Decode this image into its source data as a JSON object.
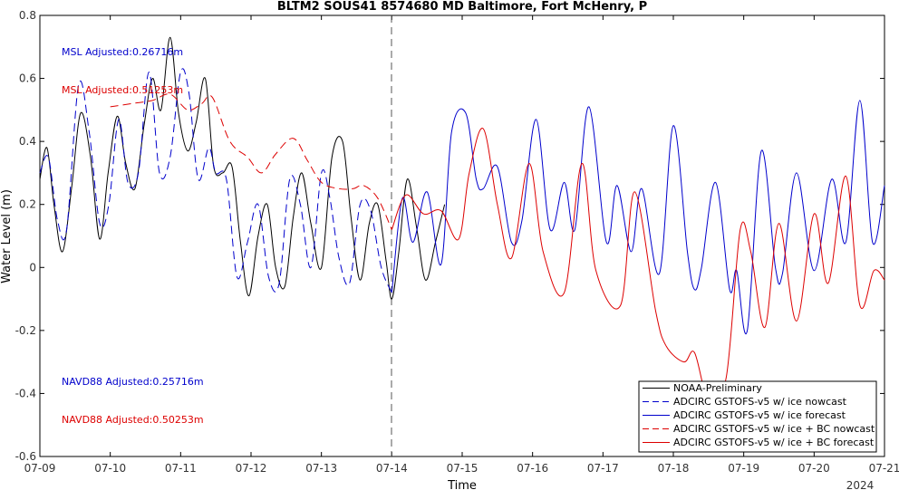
{
  "chart_data": {
    "type": "line",
    "title": "BLTM2 SOUS41 8574680 MD Baltimore, Fort McHenry, P",
    "xlabel": "Time",
    "ylabel": "Water Level (m)",
    "xlim": [
      "07-09",
      "07-21"
    ],
    "ylim": [
      -0.6,
      0.8
    ],
    "year_label": "2024",
    "x_ticks": [
      "07-09",
      "07-10",
      "07-11",
      "07-12",
      "07-13",
      "07-14",
      "07-15",
      "07-16",
      "07-17",
      "07-18",
      "07-19",
      "07-20",
      "07-21"
    ],
    "y_ticks": [
      "-0.6",
      "-0.4",
      "-0.2",
      "0",
      "0.2",
      "0.4",
      "0.6",
      "0.8"
    ],
    "nowcast_end": "07-14",
    "annotations": [
      {
        "text": "MSL Adjusted:0.26716m",
        "color": "#0000cc"
      },
      {
        "text": "MSL Adjusted:0.51253m",
        "color": "#dd0000"
      },
      {
        "text": "NAVD88 Adjusted:0.25716m",
        "color": "#0000cc"
      },
      {
        "text": "NAVD88 Adjusted:0.50253m",
        "color": "#dd0000"
      }
    ],
    "legend_position": "bottom-right",
    "series": [
      {
        "name": "NOAA-Preliminary",
        "color": "#000000",
        "dash": "solid",
        "x": [
          0,
          0.1,
          0.2,
          0.32,
          0.45,
          0.58,
          0.72,
          0.85,
          0.97,
          1.1,
          1.22,
          1.35,
          1.48,
          1.6,
          1.72,
          1.85,
          1.97,
          2.1,
          2.22,
          2.35,
          2.47,
          2.6,
          2.73,
          2.85,
          2.97,
          3.1,
          3.23,
          3.35,
          3.48,
          3.6,
          3.72,
          3.85,
          4.0,
          4.15,
          4.3,
          4.42,
          4.55,
          4.68,
          4.8,
          4.92,
          5.0,
          5.1,
          5.22,
          5.35,
          5.48,
          5.62,
          5.75
        ],
        "y": [
          0.28,
          0.38,
          0.2,
          0.05,
          0.25,
          0.49,
          0.35,
          0.09,
          0.3,
          0.48,
          0.33,
          0.25,
          0.45,
          0.6,
          0.5,
          0.73,
          0.49,
          0.37,
          0.46,
          0.6,
          0.32,
          0.3,
          0.32,
          0.08,
          -0.09,
          0.1,
          0.2,
          0.0,
          -0.06,
          0.16,
          0.3,
          0.14,
          0.0,
          0.35,
          0.4,
          0.16,
          -0.04,
          0.14,
          0.2,
          0.02,
          -0.1,
          0.05,
          0.28,
          0.13,
          -0.04,
          0.08,
          0.2
        ]
      },
      {
        "name": "ADCIRC GSTOFS-v5 w/ ice nowcast",
        "color": "#0000cc",
        "dash": "dashed",
        "x": [
          0,
          0.12,
          0.25,
          0.38,
          0.55,
          0.7,
          0.85,
          0.98,
          1.12,
          1.25,
          1.4,
          1.55,
          1.7,
          1.85,
          2.0,
          2.12,
          2.25,
          2.4,
          2.5,
          2.65,
          2.8,
          2.95,
          3.1,
          3.25,
          3.4,
          3.55,
          3.7,
          3.85,
          4.0,
          4.12,
          4.25,
          4.4,
          4.55,
          4.7,
          4.85,
          5.0
        ],
        "y": [
          0.3,
          0.35,
          0.15,
          0.12,
          0.58,
          0.43,
          0.14,
          0.2,
          0.47,
          0.27,
          0.3,
          0.62,
          0.3,
          0.35,
          0.62,
          0.55,
          0.28,
          0.38,
          0.3,
          0.28,
          -0.03,
          0.08,
          0.2,
          -0.03,
          -0.05,
          0.28,
          0.2,
          0.0,
          0.3,
          0.22,
          0.03,
          -0.05,
          0.2,
          0.18,
          0.0,
          -0.08
        ]
      },
      {
        "name": "ADCIRC GSTOFS-v5 w/ ice forecast",
        "color": "#0000cc",
        "dash": "solid",
        "x": [
          5.0,
          5.15,
          5.3,
          5.5,
          5.7,
          5.85,
          6.05,
          6.2,
          6.3,
          6.5,
          6.7,
          6.85,
          7.05,
          7.25,
          7.45,
          7.6,
          7.8,
          8.05,
          8.2,
          8.4,
          8.55,
          8.8,
          9.0,
          9.2,
          9.3,
          9.4,
          9.6,
          9.8,
          9.9,
          10.05,
          10.25,
          10.45,
          10.55,
          10.75,
          11.0,
          11.25,
          11.45,
          11.65,
          11.83,
          12.0
        ],
        "y": [
          -0.08,
          0.22,
          0.08,
          0.24,
          0.01,
          0.43,
          0.49,
          0.28,
          0.25,
          0.32,
          0.08,
          0.15,
          0.47,
          0.12,
          0.27,
          0.12,
          0.51,
          0.08,
          0.26,
          0.05,
          0.25,
          -0.02,
          0.45,
          0.05,
          -0.07,
          0.0,
          0.27,
          -0.07,
          -0.01,
          -0.2,
          0.37,
          0.0,
          -0.02,
          0.3,
          -0.01,
          0.28,
          0.08,
          0.53,
          0.08,
          0.26
        ]
      },
      {
        "name": "ADCIRC GSTOFS-v5 w/ ice + BC nowcast",
        "color": "#dd0000",
        "dash": "dashed",
        "x": [
          1.0,
          1.3,
          1.6,
          1.85,
          2.1,
          2.3,
          2.45,
          2.7,
          2.95,
          3.15,
          3.35,
          3.6,
          3.8,
          4.0,
          4.25,
          4.45,
          4.6,
          4.8,
          5.0
        ],
        "y": [
          0.51,
          0.52,
          0.53,
          0.55,
          0.5,
          0.52,
          0.54,
          0.4,
          0.35,
          0.3,
          0.36,
          0.41,
          0.34,
          0.27,
          0.25,
          0.25,
          0.26,
          0.22,
          0.12
        ]
      },
      {
        "name": "ADCIRC GSTOFS-v5 w/ ice + BC forecast",
        "color": "#dd0000",
        "dash": "solid",
        "x": [
          5.0,
          5.2,
          5.45,
          5.7,
          5.95,
          6.1,
          6.3,
          6.5,
          6.7,
          6.95,
          7.15,
          7.45,
          7.7,
          7.9,
          8.25,
          8.45,
          8.75,
          8.9,
          9.15,
          9.3,
          9.5,
          9.75,
          9.95,
          10.1,
          10.3,
          10.5,
          10.75,
          11.0,
          11.2,
          11.45,
          11.65,
          11.85,
          12.0
        ],
        "y": [
          0.12,
          0.23,
          0.17,
          0.18,
          0.09,
          0.3,
          0.44,
          0.2,
          0.03,
          0.33,
          0.05,
          -0.08,
          0.33,
          -0.01,
          -0.12,
          0.24,
          -0.14,
          -0.25,
          -0.3,
          -0.27,
          -0.42,
          -0.35,
          0.12,
          0.05,
          -0.19,
          0.14,
          -0.17,
          0.17,
          -0.05,
          0.29,
          -0.12,
          -0.01,
          -0.04
        ]
      }
    ]
  }
}
